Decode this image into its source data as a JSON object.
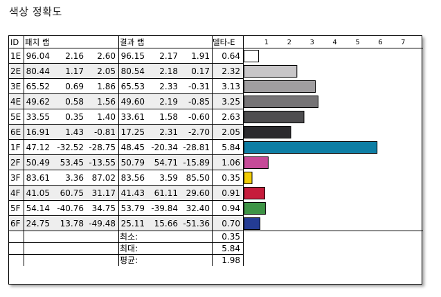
{
  "title": "색상 정확도",
  "columns": {
    "id": "ID",
    "patch": "패치 랩",
    "result": "결과 랩",
    "delta": "델타-E"
  },
  "summary": [
    {
      "label": "최소:",
      "value": "0.35"
    },
    {
      "label": "최대:",
      "value": "5.84"
    },
    {
      "label": "평균:",
      "value": "1.98"
    }
  ],
  "chart_data": {
    "type": "bar",
    "orientation": "horizontal",
    "axis_ticks": [
      "1",
      "2",
      "3",
      "4",
      "5",
      "6",
      "7"
    ],
    "xlim": [
      0,
      7.5
    ],
    "rows": [
      {
        "id": "1E",
        "patch": [
          "96.04",
          "2.16",
          "2.60"
        ],
        "result": [
          "96.15",
          "2.17",
          "1.91"
        ],
        "delta": "0.64",
        "value": 0.64,
        "color": "#ffffff"
      },
      {
        "id": "2E",
        "patch": [
          "80.44",
          "1.17",
          "2.05"
        ],
        "result": [
          "80.54",
          "2.18",
          "0.17"
        ],
        "delta": "2.32",
        "value": 2.32,
        "color": "#c8c6c8"
      },
      {
        "id": "3E",
        "patch": [
          "65.52",
          "0.69",
          "1.86"
        ],
        "result": [
          "65.53",
          "2.33",
          "-0.31"
        ],
        "delta": "3.13",
        "value": 3.13,
        "color": "#a09ea0"
      },
      {
        "id": "4E",
        "patch": [
          "49.62",
          "0.58",
          "1.56"
        ],
        "result": [
          "49.60",
          "2.19",
          "-0.85"
        ],
        "delta": "3.25",
        "value": 3.25,
        "color": "#767476"
      },
      {
        "id": "5E",
        "patch": [
          "33.55",
          "0.35",
          "1.40"
        ],
        "result": [
          "33.61",
          "1.58",
          "-0.60"
        ],
        "delta": "2.63",
        "value": 2.63,
        "color": "#4e4d4f"
      },
      {
        "id": "6E",
        "patch": [
          "16.91",
          "1.43",
          "-0.81"
        ],
        "result": [
          "17.25",
          "2.31",
          "-2.70"
        ],
        "delta": "2.05",
        "value": 2.05,
        "color": "#2b2a2d"
      },
      {
        "id": "1F",
        "patch": [
          "47.12",
          "-32.52",
          "-28.75"
        ],
        "result": [
          "48.45",
          "-20.34",
          "-28.81"
        ],
        "delta": "5.84",
        "value": 5.84,
        "color": "#0e7ea4"
      },
      {
        "id": "2F",
        "patch": [
          "50.49",
          "53.45",
          "-13.55"
        ],
        "result": [
          "50.79",
          "54.71",
          "-15.89"
        ],
        "delta": "1.06",
        "value": 1.06,
        "color": "#c64a98"
      },
      {
        "id": "3F",
        "patch": [
          "83.61",
          "3.36",
          "87.02"
        ],
        "result": [
          "83.56",
          "3.59",
          "85.50"
        ],
        "delta": "0.35",
        "value": 0.35,
        "color": "#f2cc05"
      },
      {
        "id": "4F",
        "patch": [
          "41.05",
          "60.75",
          "31.17"
        ],
        "result": [
          "41.43",
          "61.11",
          "29.60"
        ],
        "delta": "0.91",
        "value": 0.91,
        "color": "#c61c3c"
      },
      {
        "id": "5F",
        "patch": [
          "54.14",
          "-40.76",
          "34.75"
        ],
        "result": [
          "53.79",
          "-39.84",
          "32.40"
        ],
        "delta": "0.94",
        "value": 0.94,
        "color": "#3e9446"
      },
      {
        "id": "6F",
        "patch": [
          "24.75",
          "13.78",
          "-49.48"
        ],
        "result": [
          "25.11",
          "15.66",
          "-51.36"
        ],
        "delta": "0.70",
        "value": 0.7,
        "color": "#243c94"
      }
    ]
  }
}
